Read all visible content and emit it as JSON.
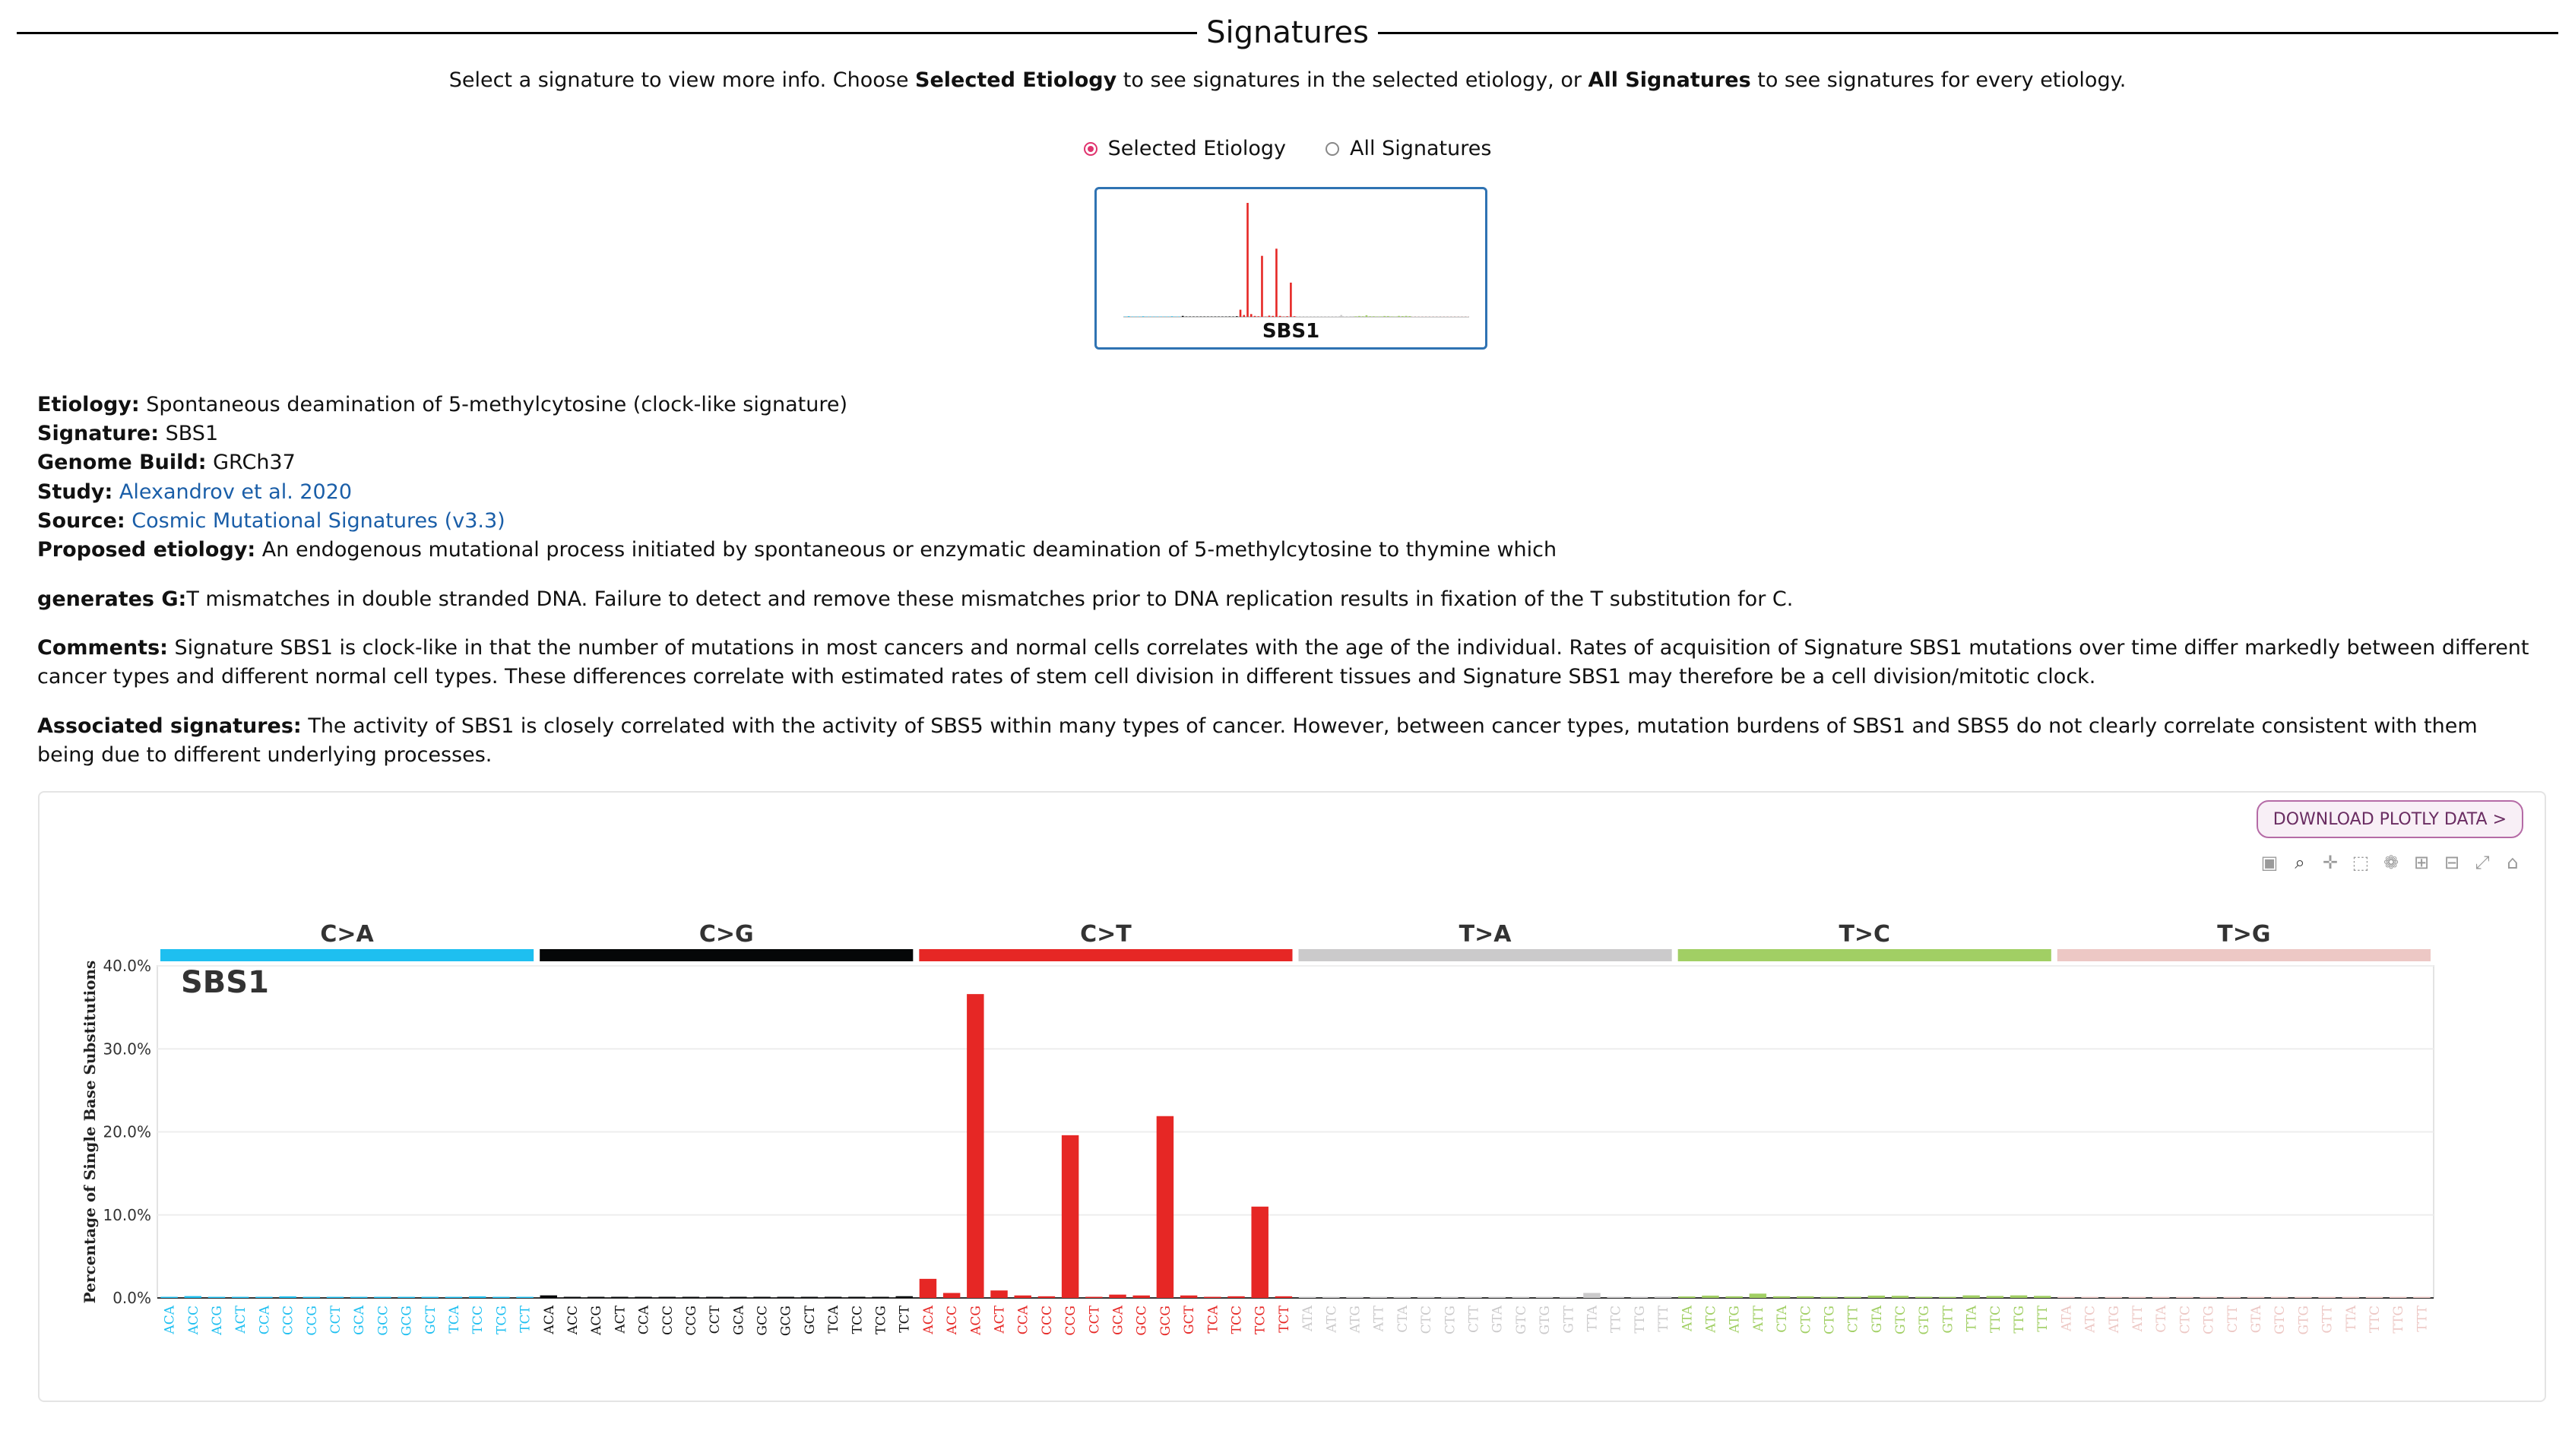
{
  "page": {
    "title": "Signatures",
    "intro": {
      "p1": "Select a signature to view more info. Choose ",
      "b1": "Selected Etiology",
      "p2": " to see signatures in the selected etiology, or ",
      "b2": "All Signatures",
      "p3": " to see signatures for every etiology."
    },
    "radio_options": [
      "Selected Etiology",
      "All Signatures"
    ],
    "radio_selected": "Selected Etiology",
    "thumbnail_label": "SBS1"
  },
  "info": {
    "etiology_label": "Etiology:",
    "etiology": "Spontaneous deamination of 5-methylcytosine (clock-like signature)",
    "signature_label": "Signature:",
    "signature": "SBS1",
    "genome_build_label": "Genome Build:",
    "genome_build": "GRCh37",
    "study_label": "Study:",
    "study": "Alexandrov et al. 2020",
    "source_label": "Source:",
    "source": "Cosmic Mutational Signatures (v3.3)",
    "proposed_label": "Proposed etiology:",
    "proposed": "An endogenous mutational process initiated by spontaneous or enzymatic deamination of 5-methylcytosine to thymine which",
    "generates_label": "generates G:",
    "generates": "T mismatches in double stranded DNA. Failure to detect and remove these mismatches prior to DNA replication results in fixation of the T substitution for C.",
    "comments_label": "Comments:",
    "comments": "Signature SBS1 is clock-like in that the number of mutations in most cancers and normal cells correlates with the age of the individual. Rates of acquisition of Signature SBS1 mutations over time differ markedly between different cancer types and different normal cell types. These differences correlate with estimated rates of stem cell division in different tissues and Signature SBS1 may therefore be a cell division/mitotic clock.",
    "associated_label": "Associated signatures:",
    "associated": "The activity of SBS1 is closely correlated with the activity of SBS5 within many types of cancer. However, between cancer types, mutation burdens of SBS1 and SBS5 do not clearly correlate consistent with them being due to different underlying processes."
  },
  "download_button": "DOWNLOAD PLOTLY DATA >",
  "modebar_icons": [
    "camera-icon",
    "zoom-icon",
    "pan-icon",
    "box-select-icon",
    "lasso-icon",
    "zoom-in-icon",
    "zoom-out-icon",
    "autoscale-icon",
    "reset-axes-icon"
  ],
  "chart_data": {
    "type": "bar",
    "title": "SBS1",
    "ylabel": "Percentage of Single Base Substitutions",
    "ylim": [
      0,
      0.4
    ],
    "yticks": [
      0,
      0.1,
      0.2,
      0.3,
      0.4
    ],
    "ytick_labels": [
      "0.0%",
      "10.0%",
      "20.0%",
      "30.0%",
      "40.0%"
    ],
    "grid": true,
    "groups": [
      {
        "name": "C>A",
        "color": "#1ebff0"
      },
      {
        "name": "C>G",
        "color": "#050708"
      },
      {
        "name": "C>T",
        "color": "#e62725"
      },
      {
        "name": "T>A",
        "color": "#cbcacb"
      },
      {
        "name": "T>C",
        "color": "#a1cf64"
      },
      {
        "name": "T>G",
        "color": "#edc8c5"
      }
    ],
    "group_of_category": [
      0,
      0,
      0,
      0,
      0,
      0,
      0,
      0,
      0,
      0,
      0,
      0,
      0,
      0,
      0,
      0,
      1,
      1,
      1,
      1,
      1,
      1,
      1,
      1,
      1,
      1,
      1,
      1,
      1,
      1,
      1,
      1,
      2,
      2,
      2,
      2,
      2,
      2,
      2,
      2,
      2,
      2,
      2,
      2,
      2,
      2,
      2,
      2,
      3,
      3,
      3,
      3,
      3,
      3,
      3,
      3,
      3,
      3,
      3,
      3,
      3,
      3,
      3,
      3,
      4,
      4,
      4,
      4,
      4,
      4,
      4,
      4,
      4,
      4,
      4,
      4,
      4,
      4,
      4,
      4,
      5,
      5,
      5,
      5,
      5,
      5,
      5,
      5,
      5,
      5,
      5,
      5,
      5,
      5,
      5,
      5
    ],
    "categories": [
      "ACA",
      "ACC",
      "ACG",
      "ACT",
      "CCA",
      "CCC",
      "CCG",
      "CCT",
      "GCA",
      "GCC",
      "GCG",
      "GCT",
      "TCA",
      "TCC",
      "TCG",
      "TCT",
      "ACA",
      "ACC",
      "ACG",
      "ACT",
      "CCA",
      "CCC",
      "CCG",
      "CCT",
      "GCA",
      "GCC",
      "GCG",
      "GCT",
      "TCA",
      "TCC",
      "TCG",
      "TCT",
      "ACA",
      "ACC",
      "ACG",
      "ACT",
      "CCA",
      "CCC",
      "CCG",
      "CCT",
      "GCA",
      "GCC",
      "GCG",
      "GCT",
      "TCA",
      "TCC",
      "TCG",
      "TCT",
      "ATA",
      "ATC",
      "ATG",
      "ATT",
      "CTA",
      "CTC",
      "CTG",
      "CTT",
      "GTA",
      "GTC",
      "GTG",
      "GTT",
      "TTA",
      "TTC",
      "TTG",
      "TTT",
      "ATA",
      "ATC",
      "ATG",
      "ATT",
      "CTA",
      "CTC",
      "CTG",
      "CTT",
      "GTA",
      "GTC",
      "GTG",
      "GTT",
      "TTA",
      "TTC",
      "TTG",
      "TTT",
      "ATA",
      "ATC",
      "ATG",
      "ATT",
      "CTA",
      "CTC",
      "CTG",
      "CTT",
      "GTA",
      "GTC",
      "GTG",
      "GTT",
      "TTA",
      "TTC",
      "TTG",
      "TTT"
    ],
    "values": [
      0.0009,
      0.0022,
      0.0002,
      0.0008,
      0.0006,
      0.0019,
      0.0002,
      0.0005,
      0.0004,
      0.0005,
      0.0001,
      0.0006,
      0.0009,
      0.0019,
      0.0001,
      0.0006,
      0.0031,
      0.001,
      0.0003,
      0.0009,
      0.0009,
      0.0005,
      0.0004,
      0.001,
      0.0004,
      0.0004,
      0.0002,
      0.0006,
      0.0001,
      0.0014,
      0.0002,
      0.0021,
      0.023,
      0.006,
      0.366,
      0.009,
      0.003,
      0.002,
      0.196,
      0.001,
      0.004,
      0.003,
      0.219,
      0.003,
      0.001,
      0.002,
      0.11,
      0.002,
      0.0006,
      0.0012,
      0.0002,
      0.0004,
      0.0002,
      0.0004,
      0.0002,
      0.0004,
      0.0001,
      0.0003,
      0.0001,
      0.0004,
      0.006,
      0.0008,
      0.0001,
      0.0018,
      0.0018,
      0.0028,
      0.002,
      0.0052,
      0.002,
      0.002,
      0.0015,
      0.0015,
      0.0028,
      0.0026,
      0.0015,
      0.0009,
      0.0031,
      0.0024,
      0.0031,
      0.0025,
      0.0004,
      0.0005,
      0.0007,
      0.0004,
      0.0002,
      0.0006,
      0.0005,
      0.0004,
      0.0003,
      0.0004,
      0.0003,
      0.0004,
      0.0004,
      0.0004,
      0.0002,
      0.0003
    ]
  }
}
